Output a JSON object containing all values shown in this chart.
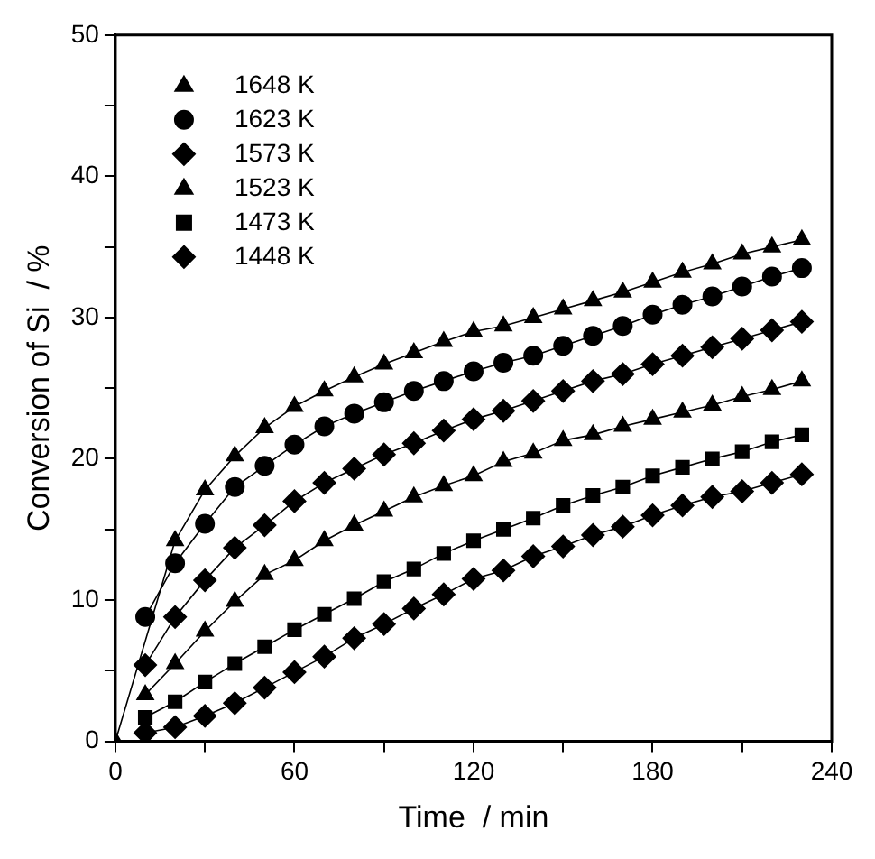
{
  "chart_data": {
    "type": "line",
    "xlabel": "Time  / min",
    "ylabel": "Conversion of Si  / %",
    "x": [
      10,
      20,
      30,
      40,
      50,
      60,
      70,
      80,
      90,
      100,
      110,
      120,
      130,
      140,
      150,
      160,
      170,
      180,
      190,
      200,
      210,
      220,
      230
    ],
    "series": [
      {
        "name": "1648 K",
        "color": "#000000",
        "marker": "triangle",
        "x": [
          0,
          10,
          20,
          30,
          40,
          50,
          60,
          70,
          80,
          90,
          100,
          110,
          120,
          130,
          140,
          150,
          160,
          170,
          180,
          190,
          200,
          210,
          220,
          230
        ],
        "values": [
          0,
          null,
          14.2,
          17.8,
          20.2,
          22.2,
          23.7,
          24.8,
          25.8,
          26.7,
          27.5,
          28.3,
          29.0,
          29.4,
          30.0,
          30.6,
          31.2,
          31.8,
          32.5,
          33.2,
          33.8,
          34.5,
          35.0,
          35.5
        ]
      },
      {
        "name": "1623 K",
        "color": "#000000",
        "marker": "circle",
        "values": [
          8.8,
          12.6,
          15.4,
          18.0,
          19.5,
          21.0,
          22.3,
          23.2,
          24.0,
          24.8,
          25.5,
          26.2,
          26.8,
          27.3,
          28.0,
          28.7,
          29.4,
          30.2,
          30.9,
          31.5,
          32.2,
          32.9,
          33.5
        ]
      },
      {
        "name": "1573 K",
        "color": "#000000",
        "marker": "diamond",
        "values": [
          5.4,
          8.8,
          11.4,
          13.7,
          15.3,
          17.0,
          18.3,
          19.3,
          20.3,
          21.1,
          22.0,
          22.8,
          23.4,
          24.1,
          24.8,
          25.5,
          26.0,
          26.7,
          27.3,
          27.9,
          28.5,
          29.1,
          29.7
        ]
      },
      {
        "name": "1523 K",
        "color": "#000000",
        "marker": "triangle",
        "values": [
          3.3,
          5.5,
          7.8,
          9.9,
          11.8,
          12.8,
          14.2,
          15.3,
          16.3,
          17.3,
          18.1,
          18.8,
          19.8,
          20.4,
          21.3,
          21.7,
          22.3,
          22.8,
          23.3,
          23.8,
          24.4,
          24.9,
          25.5
        ]
      },
      {
        "name": "1473 K",
        "color": "#000000",
        "marker": "square",
        "values": [
          1.7,
          2.8,
          4.2,
          5.5,
          6.7,
          7.9,
          9.0,
          10.1,
          11.3,
          12.2,
          13.3,
          14.2,
          15.0,
          15.8,
          16.7,
          17.4,
          18.0,
          18.8,
          19.4,
          20.0,
          20.5,
          21.2,
          21.7
        ]
      },
      {
        "name": "1448 K",
        "color": "#000000",
        "marker": "diamond",
        "values": [
          0.6,
          1.0,
          1.8,
          2.7,
          3.8,
          4.9,
          6.0,
          7.3,
          8.3,
          9.4,
          10.4,
          11.5,
          12.1,
          13.1,
          13.8,
          14.6,
          15.2,
          16.0,
          16.7,
          17.3,
          17.7,
          18.3,
          18.9
        ]
      }
    ],
    "xlim": [
      0,
      240
    ],
    "xticks": [
      0,
      {
        "value": 30,
        "label": null
      },
      60,
      {
        "value": 90,
        "label": null
      },
      120,
      {
        "value": 150,
        "label": null
      },
      180,
      {
        "value": 210,
        "label": null
      },
      240
    ],
    "ylim": [
      0,
      50
    ],
    "yticks": [
      0,
      {
        "value": 5,
        "label": null
      },
      10,
      {
        "value": 15,
        "label": null
      },
      20,
      {
        "value": 25,
        "label": null
      },
      30,
      {
        "value": 35,
        "label": null
      },
      40,
      {
        "value": 45,
        "label": null
      },
      50
    ],
    "grid": false,
    "legend": "top left",
    "line_style": "solid"
  }
}
